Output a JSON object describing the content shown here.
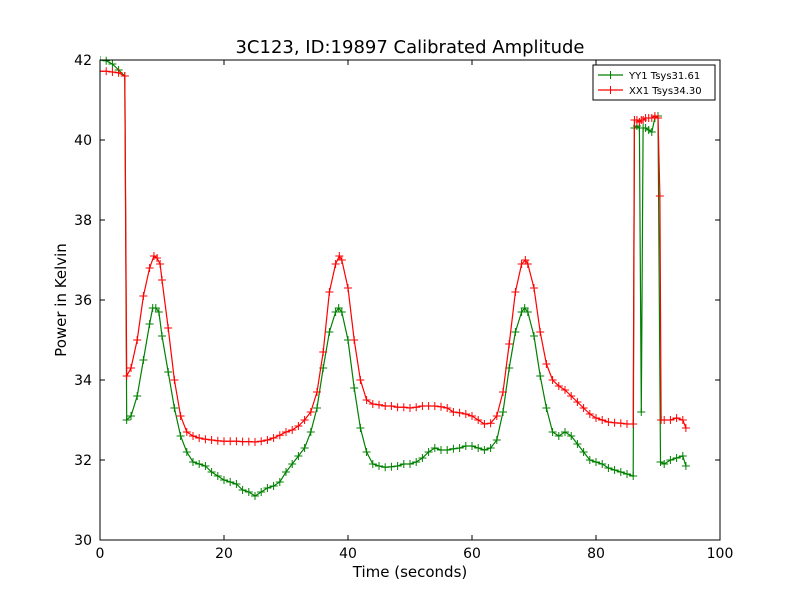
{
  "chart_data": {
    "type": "line",
    "title": "3C123, ID:19897 Calibrated Amplitude",
    "xlabel": "Time (seconds)",
    "ylabel": "Power in Kelvin",
    "xlim": [
      0,
      100
    ],
    "ylim": [
      30,
      42
    ],
    "xticks": [
      "0",
      "20",
      "40",
      "60",
      "80",
      "100"
    ],
    "yticks": [
      "30",
      "32",
      "34",
      "36",
      "38",
      "40",
      "42"
    ],
    "grid": false,
    "legend_position": "top-right",
    "marker": "plus",
    "series": [
      {
        "name": "YY1 Tsys31.61",
        "color": "#008000",
        "points": [
          [
            0,
            42.0
          ],
          [
            1,
            41.98
          ],
          [
            2,
            41.9
          ],
          [
            3,
            41.75
          ],
          [
            4,
            41.6
          ],
          [
            4.3,
            33.0
          ],
          [
            5,
            33.1
          ],
          [
            6,
            33.6
          ],
          [
            7,
            34.5
          ],
          [
            8,
            35.4
          ],
          [
            8.5,
            35.8
          ],
          [
            9,
            35.8
          ],
          [
            9.5,
            35.7
          ],
          [
            10,
            35.1
          ],
          [
            11,
            34.2
          ],
          [
            12,
            33.3
          ],
          [
            13,
            32.6
          ],
          [
            14,
            32.2
          ],
          [
            15,
            31.95
          ],
          [
            16,
            31.9
          ],
          [
            17,
            31.85
          ],
          [
            18,
            31.7
          ],
          [
            19,
            31.6
          ],
          [
            20,
            31.5
          ],
          [
            21,
            31.45
          ],
          [
            22,
            31.4
          ],
          [
            23,
            31.25
          ],
          [
            24,
            31.2
          ],
          [
            25,
            31.1
          ],
          [
            26,
            31.2
          ],
          [
            27,
            31.3
          ],
          [
            28,
            31.35
          ],
          [
            29,
            31.45
          ],
          [
            30,
            31.7
          ],
          [
            31,
            31.9
          ],
          [
            32,
            32.1
          ],
          [
            33,
            32.3
          ],
          [
            34,
            32.7
          ],
          [
            35,
            33.3
          ],
          [
            36,
            34.3
          ],
          [
            37,
            35.2
          ],
          [
            38,
            35.7
          ],
          [
            38.5,
            35.8
          ],
          [
            39,
            35.7
          ],
          [
            40,
            35.0
          ],
          [
            41,
            33.8
          ],
          [
            42,
            32.8
          ],
          [
            43,
            32.2
          ],
          [
            44,
            31.9
          ],
          [
            45,
            31.85
          ],
          [
            46,
            31.82
          ],
          [
            47,
            31.83
          ],
          [
            48,
            31.85
          ],
          [
            49,
            31.9
          ],
          [
            50,
            31.9
          ],
          [
            51,
            31.95
          ],
          [
            52,
            32.05
          ],
          [
            53,
            32.2
          ],
          [
            54,
            32.3
          ],
          [
            55,
            32.25
          ],
          [
            56,
            32.25
          ],
          [
            57,
            32.28
          ],
          [
            58,
            32.3
          ],
          [
            59,
            32.35
          ],
          [
            60,
            32.35
          ],
          [
            61,
            32.3
          ],
          [
            62,
            32.25
          ],
          [
            63,
            32.3
          ],
          [
            64,
            32.5
          ],
          [
            65,
            33.2
          ],
          [
            66,
            34.3
          ],
          [
            67,
            35.2
          ],
          [
            68,
            35.7
          ],
          [
            68.5,
            35.8
          ],
          [
            69,
            35.7
          ],
          [
            70,
            35.1
          ],
          [
            71,
            34.1
          ],
          [
            72,
            33.3
          ],
          [
            73,
            32.7
          ],
          [
            74,
            32.6
          ],
          [
            75,
            32.7
          ],
          [
            76,
            32.6
          ],
          [
            77,
            32.4
          ],
          [
            78,
            32.2
          ],
          [
            79,
            32.0
          ],
          [
            80,
            31.95
          ],
          [
            81,
            31.9
          ],
          [
            82,
            31.8
          ],
          [
            83,
            31.75
          ],
          [
            84,
            31.7
          ],
          [
            85,
            31.65
          ],
          [
            86,
            31.6
          ],
          [
            86.2,
            40.3
          ],
          [
            86.6,
            40.35
          ],
          [
            87,
            40.3
          ],
          [
            87.3,
            33.2
          ],
          [
            87.6,
            40.3
          ],
          [
            88,
            40.3
          ],
          [
            88.5,
            40.25
          ],
          [
            89,
            40.2
          ],
          [
            89.5,
            40.55
          ],
          [
            90,
            40.6
          ],
          [
            90.4,
            31.95
          ],
          [
            91,
            31.9
          ],
          [
            92,
            32.0
          ],
          [
            93,
            32.05
          ],
          [
            94,
            32.1
          ],
          [
            94.5,
            31.85
          ]
        ]
      },
      {
        "name": "XX1 Tsys34.30",
        "color": "#ff0000",
        "points": [
          [
            0,
            41.72
          ],
          [
            1,
            41.72
          ],
          [
            2,
            41.7
          ],
          [
            3,
            41.68
          ],
          [
            4,
            41.6
          ],
          [
            4.3,
            34.1
          ],
          [
            5,
            34.3
          ],
          [
            6,
            35.0
          ],
          [
            7,
            36.1
          ],
          [
            8,
            36.8
          ],
          [
            8.7,
            37.1
          ],
          [
            9.2,
            37.05
          ],
          [
            9.7,
            36.9
          ],
          [
            10,
            36.5
          ],
          [
            11,
            35.3
          ],
          [
            12,
            34.0
          ],
          [
            13,
            33.1
          ],
          [
            14,
            32.7
          ],
          [
            15,
            32.6
          ],
          [
            16,
            32.55
          ],
          [
            17,
            32.52
          ],
          [
            18,
            32.5
          ],
          [
            19,
            32.48
          ],
          [
            20,
            32.47
          ],
          [
            21,
            32.47
          ],
          [
            22,
            32.47
          ],
          [
            23,
            32.46
          ],
          [
            24,
            32.46
          ],
          [
            25,
            32.45
          ],
          [
            26,
            32.47
          ],
          [
            27,
            32.5
          ],
          [
            28,
            32.55
          ],
          [
            29,
            32.62
          ],
          [
            30,
            32.7
          ],
          [
            31,
            32.75
          ],
          [
            32,
            32.85
          ],
          [
            33,
            33.0
          ],
          [
            34,
            33.2
          ],
          [
            35,
            33.7
          ],
          [
            36,
            34.7
          ],
          [
            37,
            36.2
          ],
          [
            38,
            36.9
          ],
          [
            38.6,
            37.1
          ],
          [
            39,
            37.0
          ],
          [
            40,
            36.3
          ],
          [
            41,
            35.0
          ],
          [
            42,
            34.0
          ],
          [
            43,
            33.5
          ],
          [
            44,
            33.4
          ],
          [
            45,
            33.38
          ],
          [
            46,
            33.35
          ],
          [
            47,
            33.35
          ],
          [
            48,
            33.32
          ],
          [
            49,
            33.32
          ],
          [
            50,
            33.3
          ],
          [
            51,
            33.32
          ],
          [
            52,
            33.35
          ],
          [
            53,
            33.35
          ],
          [
            54,
            33.35
          ],
          [
            55,
            33.33
          ],
          [
            56,
            33.3
          ],
          [
            57,
            33.2
          ],
          [
            58,
            33.18
          ],
          [
            59,
            33.15
          ],
          [
            60,
            33.1
          ],
          [
            61,
            33.0
          ],
          [
            62,
            32.9
          ],
          [
            63,
            32.92
          ],
          [
            64,
            33.1
          ],
          [
            65,
            33.7
          ],
          [
            66,
            34.9
          ],
          [
            67,
            36.2
          ],
          [
            68,
            36.9
          ],
          [
            68.6,
            37.0
          ],
          [
            69,
            36.9
          ],
          [
            70,
            36.3
          ],
          [
            71,
            35.2
          ],
          [
            72,
            34.4
          ],
          [
            73,
            34.0
          ],
          [
            74,
            33.85
          ],
          [
            75,
            33.75
          ],
          [
            76,
            33.6
          ],
          [
            77,
            33.45
          ],
          [
            78,
            33.3
          ],
          [
            79,
            33.15
          ],
          [
            80,
            33.05
          ],
          [
            81,
            33.0
          ],
          [
            82,
            32.95
          ],
          [
            83,
            32.93
          ],
          [
            84,
            32.92
          ],
          [
            85,
            32.9
          ],
          [
            86,
            32.9
          ],
          [
            86.2,
            40.5
          ],
          [
            86.6,
            40.5
          ],
          [
            87,
            40.45
          ],
          [
            87.3,
            40.5
          ],
          [
            87.6,
            40.5
          ],
          [
            88,
            40.55
          ],
          [
            88.5,
            40.55
          ],
          [
            89,
            40.55
          ],
          [
            89.5,
            40.6
          ],
          [
            90,
            40.55
          ],
          [
            90.3,
            38.6
          ],
          [
            90.5,
            33.0
          ],
          [
            91,
            33.0
          ],
          [
            92,
            33.0
          ],
          [
            93,
            33.05
          ],
          [
            94,
            33.0
          ],
          [
            94.5,
            32.8
          ]
        ]
      }
    ]
  }
}
